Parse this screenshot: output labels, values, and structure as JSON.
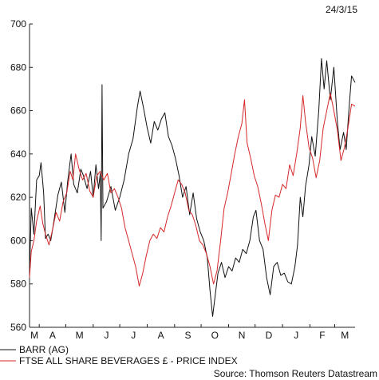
{
  "header": {
    "date": "24/3/15"
  },
  "source": "Source: Thomson Reuters Datastream",
  "chart_data": {
    "type": "line",
    "ylim": [
      560,
      700
    ],
    "y_ticks": [
      560,
      580,
      600,
      620,
      640,
      660,
      680,
      700
    ],
    "x_tick_labels": [
      "M",
      "A",
      "M",
      "J",
      "J",
      "A",
      "S",
      "O",
      "N",
      "D",
      "J",
      "F",
      "M"
    ],
    "xlim": [
      "2014-03-21",
      "2015-03-24"
    ],
    "grid": false,
    "legend_position": "bottom-left",
    "series": [
      {
        "name": "BARR (AG)",
        "color": "#111111",
        "points": [
          [
            "2014-03-21",
            585
          ],
          [
            "2014-03-23",
            615
          ],
          [
            "2014-03-26",
            603
          ],
          [
            "2014-03-29",
            628
          ],
          [
            "2014-04-01",
            630
          ],
          [
            "2014-04-03",
            636
          ],
          [
            "2014-04-06",
            622
          ],
          [
            "2014-04-08",
            601
          ],
          [
            "2014-04-11",
            603
          ],
          [
            "2014-04-14",
            600
          ],
          [
            "2014-04-18",
            610
          ],
          [
            "2014-04-22",
            621
          ],
          [
            "2014-04-26",
            627
          ],
          [
            "2014-04-30",
            613
          ],
          [
            "2014-05-03",
            627
          ],
          [
            "2014-05-07",
            640
          ],
          [
            "2014-05-10",
            626
          ],
          [
            "2014-05-14",
            622
          ],
          [
            "2014-05-18",
            633
          ],
          [
            "2014-05-21",
            630
          ],
          [
            "2014-05-25",
            624
          ],
          [
            "2014-05-29",
            632
          ],
          [
            "2014-06-01",
            620
          ],
          [
            "2014-06-04",
            635
          ],
          [
            "2014-06-07",
            624
          ],
          [
            "2014-06-09",
            631
          ],
          [
            "2014-06-10",
            600
          ],
          [
            "2014-06-11",
            672
          ],
          [
            "2014-06-12",
            615
          ],
          [
            "2014-06-16",
            618
          ],
          [
            "2014-06-21",
            625
          ],
          [
            "2014-06-26",
            614
          ],
          [
            "2014-07-01",
            620
          ],
          [
            "2014-07-06",
            628
          ],
          [
            "2014-07-11",
            640
          ],
          [
            "2014-07-16",
            647
          ],
          [
            "2014-07-21",
            662
          ],
          [
            "2014-07-24",
            669
          ],
          [
            "2014-07-28",
            661
          ],
          [
            "2014-08-01",
            652
          ],
          [
            "2014-08-05",
            645
          ],
          [
            "2014-08-09",
            655
          ],
          [
            "2014-08-13",
            651
          ],
          [
            "2014-08-17",
            656
          ],
          [
            "2014-08-21",
            659
          ],
          [
            "2014-08-25",
            648
          ],
          [
            "2014-08-29",
            644
          ],
          [
            "2014-09-02",
            638
          ],
          [
            "2014-09-06",
            630
          ],
          [
            "2014-09-10",
            620
          ],
          [
            "2014-09-14",
            625
          ],
          [
            "2014-09-18",
            612
          ],
          [
            "2014-09-22",
            622
          ],
          [
            "2014-09-26",
            610
          ],
          [
            "2014-09-30",
            604
          ],
          [
            "2014-10-04",
            600
          ],
          [
            "2014-10-08",
            592
          ],
          [
            "2014-10-11",
            577
          ],
          [
            "2014-10-14",
            565
          ],
          [
            "2014-10-17",
            575
          ],
          [
            "2014-10-20",
            585
          ],
          [
            "2014-10-24",
            590
          ],
          [
            "2014-10-28",
            583
          ],
          [
            "2014-11-01",
            588
          ],
          [
            "2014-11-05",
            586
          ],
          [
            "2014-11-09",
            592
          ],
          [
            "2014-11-13",
            590
          ],
          [
            "2014-11-17",
            596
          ],
          [
            "2014-11-21",
            594
          ],
          [
            "2014-11-25",
            600
          ],
          [
            "2014-11-29",
            611
          ],
          [
            "2014-12-02",
            614
          ],
          [
            "2014-12-06",
            600
          ],
          [
            "2014-12-10",
            596
          ],
          [
            "2014-12-14",
            583
          ],
          [
            "2014-12-18",
            575
          ],
          [
            "2014-12-22",
            588
          ],
          [
            "2014-12-26",
            590
          ],
          [
            "2014-12-30",
            584
          ],
          [
            "2015-01-03",
            585
          ],
          [
            "2015-01-07",
            581
          ],
          [
            "2015-01-11",
            580
          ],
          [
            "2015-01-15",
            588
          ],
          [
            "2015-01-18",
            598
          ],
          [
            "2015-01-21",
            620
          ],
          [
            "2015-01-24",
            611
          ],
          [
            "2015-01-27",
            625
          ],
          [
            "2015-01-31",
            635
          ],
          [
            "2015-02-03",
            648
          ],
          [
            "2015-02-07",
            639
          ],
          [
            "2015-02-11",
            660
          ],
          [
            "2015-02-14",
            684
          ],
          [
            "2015-02-17",
            670
          ],
          [
            "2015-02-20",
            683
          ],
          [
            "2015-02-24",
            665
          ],
          [
            "2015-02-28",
            680
          ],
          [
            "2015-03-04",
            655
          ],
          [
            "2015-03-07",
            642
          ],
          [
            "2015-03-11",
            650
          ],
          [
            "2015-03-14",
            642
          ],
          [
            "2015-03-17",
            660
          ],
          [
            "2015-03-20",
            676
          ],
          [
            "2015-03-24",
            673
          ]
        ]
      },
      {
        "name": "FTSE ALL SHARE BEVERAGES £ - PRICE INDEX",
        "color": "#d62728",
        "points": [
          [
            "2014-03-21",
            583
          ],
          [
            "2014-03-23",
            595
          ],
          [
            "2014-03-26",
            600
          ],
          [
            "2014-03-29",
            609
          ],
          [
            "2014-04-02",
            616
          ],
          [
            "2014-04-05",
            608
          ],
          [
            "2014-04-08",
            603
          ],
          [
            "2014-04-12",
            598
          ],
          [
            "2014-04-16",
            605
          ],
          [
            "2014-04-20",
            613
          ],
          [
            "2014-04-24",
            609
          ],
          [
            "2014-04-28",
            618
          ],
          [
            "2014-05-02",
            622
          ],
          [
            "2014-05-06",
            632
          ],
          [
            "2014-05-09",
            628
          ],
          [
            "2014-05-12",
            640
          ],
          [
            "2014-05-16",
            633
          ],
          [
            "2014-05-20",
            628
          ],
          [
            "2014-05-24",
            631
          ],
          [
            "2014-05-28",
            623
          ],
          [
            "2014-06-01",
            620
          ],
          [
            "2014-06-05",
            630
          ],
          [
            "2014-06-09",
            632
          ],
          [
            "2014-06-13",
            628
          ],
          [
            "2014-06-17",
            631
          ],
          [
            "2014-06-21",
            622
          ],
          [
            "2014-06-25",
            624
          ],
          [
            "2014-06-29",
            620
          ],
          [
            "2014-07-03",
            615
          ],
          [
            "2014-07-07",
            606
          ],
          [
            "2014-07-11",
            600
          ],
          [
            "2014-07-15",
            594
          ],
          [
            "2014-07-19",
            588
          ],
          [
            "2014-07-23",
            579
          ],
          [
            "2014-07-27",
            585
          ],
          [
            "2014-07-31",
            593
          ],
          [
            "2014-08-04",
            600
          ],
          [
            "2014-08-08",
            603
          ],
          [
            "2014-08-12",
            601
          ],
          [
            "2014-08-16",
            606
          ],
          [
            "2014-08-20",
            604
          ],
          [
            "2014-08-24",
            611
          ],
          [
            "2014-08-28",
            616
          ],
          [
            "2014-09-01",
            622
          ],
          [
            "2014-09-05",
            628
          ],
          [
            "2014-09-09",
            626
          ],
          [
            "2014-09-13",
            622
          ],
          [
            "2014-09-17",
            614
          ],
          [
            "2014-09-21",
            612
          ],
          [
            "2014-09-25",
            607
          ],
          [
            "2014-09-29",
            600
          ],
          [
            "2014-10-03",
            598
          ],
          [
            "2014-10-07",
            594
          ],
          [
            "2014-10-11",
            588
          ],
          [
            "2014-10-15",
            580
          ],
          [
            "2014-10-19",
            586
          ],
          [
            "2014-10-23",
            600
          ],
          [
            "2014-10-27",
            615
          ],
          [
            "2014-10-31",
            622
          ],
          [
            "2014-11-04",
            631
          ],
          [
            "2014-11-08",
            640
          ],
          [
            "2014-11-12",
            648
          ],
          [
            "2014-11-16",
            654
          ],
          [
            "2014-11-19",
            665
          ],
          [
            "2014-11-22",
            645
          ],
          [
            "2014-11-26",
            638
          ],
          [
            "2014-11-30",
            630
          ],
          [
            "2014-12-04",
            625
          ],
          [
            "2014-12-08",
            617
          ],
          [
            "2014-12-12",
            608
          ],
          [
            "2014-12-16",
            600
          ],
          [
            "2014-12-20",
            614
          ],
          [
            "2014-12-24",
            621
          ],
          [
            "2014-12-28",
            620
          ],
          [
            "2015-01-01",
            626
          ],
          [
            "2015-01-05",
            624
          ],
          [
            "2015-01-09",
            635
          ],
          [
            "2015-01-13",
            630
          ],
          [
            "2015-01-17",
            640
          ],
          [
            "2015-01-21",
            652
          ],
          [
            "2015-01-24",
            667
          ],
          [
            "2015-01-27",
            655
          ],
          [
            "2015-01-31",
            643
          ],
          [
            "2015-02-04",
            638
          ],
          [
            "2015-02-08",
            629
          ],
          [
            "2015-02-12",
            637
          ],
          [
            "2015-02-16",
            652
          ],
          [
            "2015-02-20",
            660
          ],
          [
            "2015-02-24",
            668
          ],
          [
            "2015-02-28",
            660
          ],
          [
            "2015-03-04",
            651
          ],
          [
            "2015-03-08",
            637
          ],
          [
            "2015-03-12",
            643
          ],
          [
            "2015-03-16",
            652
          ],
          [
            "2015-03-20",
            663
          ],
          [
            "2015-03-24",
            662
          ]
        ]
      }
    ]
  }
}
